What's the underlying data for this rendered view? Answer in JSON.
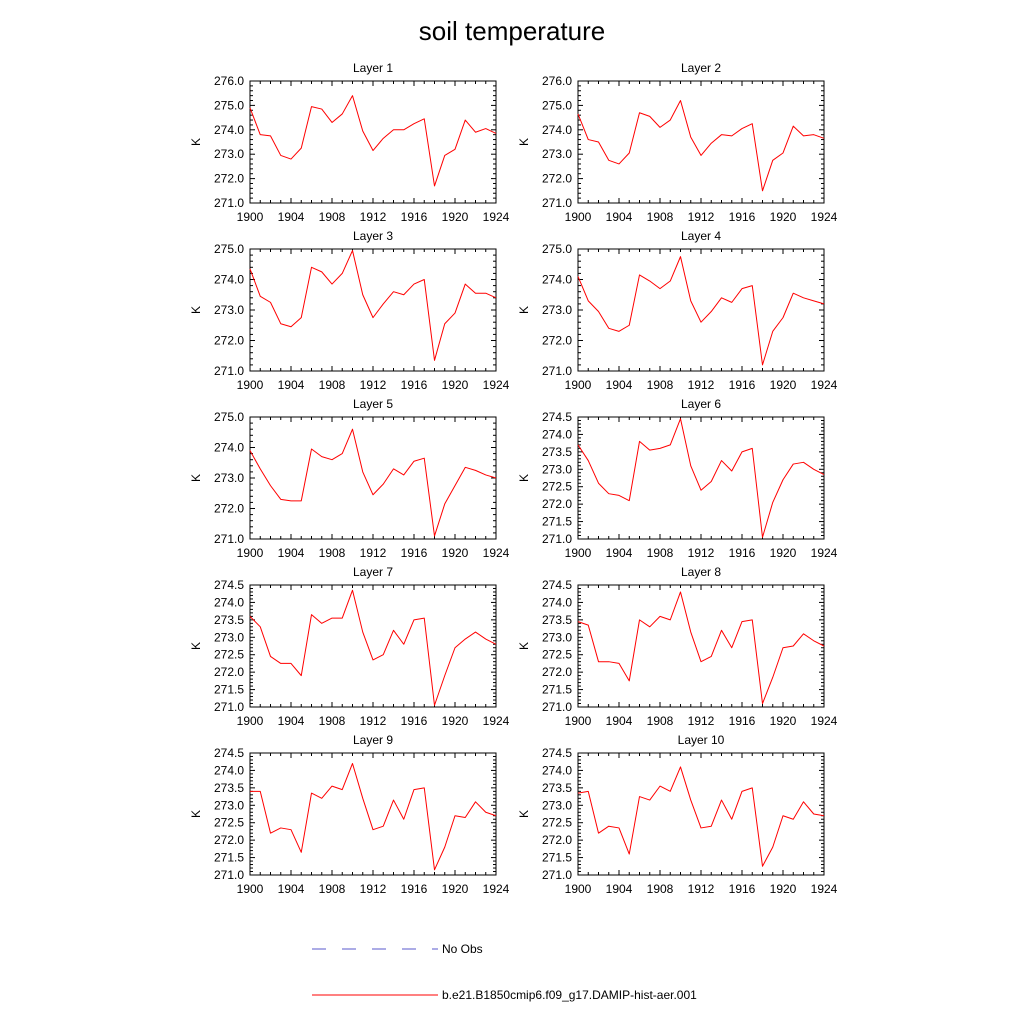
{
  "figure": {
    "title": "soil temperature",
    "legend": [
      {
        "label": "No Obs",
        "color": "#5a5acc",
        "dash": "dashed"
      },
      {
        "label": "b.e21.B1850cmip6.f09_g17.DAMIP-hist-aer.001",
        "color": "#ff0000",
        "dash": "solid"
      }
    ]
  },
  "chart_data": [
    {
      "type": "line",
      "title": "Layer 1",
      "xlabel": "",
      "ylabel": "K",
      "x": [
        1900,
        1901,
        1902,
        1903,
        1904,
        1905,
        1906,
        1907,
        1908,
        1909,
        1910,
        1911,
        1912,
        1913,
        1914,
        1915,
        1916,
        1917,
        1918,
        1919,
        1920,
        1921,
        1922,
        1923,
        1924
      ],
      "xlim": [
        1900,
        1924
      ],
      "xticks": [
        "1900",
        "1904",
        "1908",
        "1912",
        "1916",
        "1920",
        "1924"
      ],
      "ylim": [
        271.0,
        276.0
      ],
      "yticks": [
        "271.0",
        "272.0",
        "273.0",
        "274.0",
        "275.0",
        "276.0"
      ],
      "series": [
        {
          "name": "b.e21.B1850cmip6.f09_g17.DAMIP-hist-aer.001",
          "color": "#ff0000",
          "values": [
            274.9,
            273.8,
            273.75,
            272.95,
            272.8,
            273.25,
            274.95,
            274.85,
            274.3,
            274.65,
            275.4,
            273.95,
            273.15,
            273.65,
            274.0,
            274.0,
            274.25,
            274.45,
            271.7,
            272.95,
            273.2,
            274.4,
            273.9,
            274.05,
            273.85
          ]
        }
      ]
    },
    {
      "type": "line",
      "title": "Layer 2",
      "xlabel": "",
      "ylabel": "K",
      "x": [
        1900,
        1901,
        1902,
        1903,
        1904,
        1905,
        1906,
        1907,
        1908,
        1909,
        1910,
        1911,
        1912,
        1913,
        1914,
        1915,
        1916,
        1917,
        1918,
        1919,
        1920,
        1921,
        1922,
        1923,
        1924
      ],
      "xlim": [
        1900,
        1924
      ],
      "xticks": [
        "1900",
        "1904",
        "1908",
        "1912",
        "1916",
        "1920",
        "1924"
      ],
      "ylim": [
        271.0,
        276.0
      ],
      "yticks": [
        "271.0",
        "272.0",
        "273.0",
        "274.0",
        "275.0",
        "276.0"
      ],
      "series": [
        {
          "name": "b.e21.B1850cmip6.f09_g17.DAMIP-hist-aer.001",
          "color": "#ff0000",
          "values": [
            274.65,
            273.6,
            273.5,
            272.75,
            272.6,
            273.05,
            274.7,
            274.55,
            274.1,
            274.4,
            275.2,
            273.7,
            272.95,
            273.45,
            273.8,
            273.75,
            274.05,
            274.25,
            271.5,
            272.75,
            273.05,
            274.15,
            273.75,
            273.8,
            273.65
          ]
        }
      ]
    },
    {
      "type": "line",
      "title": "Layer 3",
      "xlabel": "",
      "ylabel": "K",
      "x": [
        1900,
        1901,
        1902,
        1903,
        1904,
        1905,
        1906,
        1907,
        1908,
        1909,
        1910,
        1911,
        1912,
        1913,
        1914,
        1915,
        1916,
        1917,
        1918,
        1919,
        1920,
        1921,
        1922,
        1923,
        1924
      ],
      "xlim": [
        1900,
        1924
      ],
      "xticks": [
        "1900",
        "1904",
        "1908",
        "1912",
        "1916",
        "1920",
        "1924"
      ],
      "ylim": [
        271.0,
        275.0
      ],
      "yticks": [
        "271.0",
        "272.0",
        "273.0",
        "274.0",
        "275.0"
      ],
      "series": [
        {
          "name": "b.e21.B1850cmip6.f09_g17.DAMIP-hist-aer.001",
          "color": "#ff0000",
          "values": [
            274.35,
            273.45,
            273.25,
            272.55,
            272.45,
            272.75,
            274.4,
            274.25,
            273.85,
            274.2,
            274.95,
            273.5,
            272.75,
            273.2,
            273.6,
            273.5,
            273.85,
            274.0,
            271.35,
            272.55,
            272.9,
            273.85,
            273.55,
            273.55,
            273.4
          ]
        }
      ]
    },
    {
      "type": "line",
      "title": "Layer 4",
      "xlabel": "",
      "ylabel": "K",
      "x": [
        1900,
        1901,
        1902,
        1903,
        1904,
        1905,
        1906,
        1907,
        1908,
        1909,
        1910,
        1911,
        1912,
        1913,
        1914,
        1915,
        1916,
        1917,
        1918,
        1919,
        1920,
        1921,
        1922,
        1923,
        1924
      ],
      "xlim": [
        1900,
        1924
      ],
      "xticks": [
        "1900",
        "1904",
        "1908",
        "1912",
        "1916",
        "1920",
        "1924"
      ],
      "ylim": [
        271.0,
        275.0
      ],
      "yticks": [
        "271.0",
        "272.0",
        "273.0",
        "274.0",
        "275.0"
      ],
      "series": [
        {
          "name": "b.e21.B1850cmip6.f09_g17.DAMIP-hist-aer.001",
          "color": "#ff0000",
          "values": [
            274.1,
            273.3,
            272.95,
            272.4,
            272.3,
            272.5,
            274.15,
            273.95,
            273.7,
            273.95,
            274.75,
            273.3,
            272.6,
            272.95,
            273.4,
            273.25,
            273.7,
            273.8,
            271.2,
            272.3,
            272.75,
            273.55,
            273.4,
            273.3,
            273.2
          ]
        }
      ]
    },
    {
      "type": "line",
      "title": "Layer 5",
      "xlabel": "",
      "ylabel": "K",
      "x": [
        1900,
        1901,
        1902,
        1903,
        1904,
        1905,
        1906,
        1907,
        1908,
        1909,
        1910,
        1911,
        1912,
        1913,
        1914,
        1915,
        1916,
        1917,
        1918,
        1919,
        1920,
        1921,
        1922,
        1923,
        1924
      ],
      "xlim": [
        1900,
        1924
      ],
      "xticks": [
        "1900",
        "1904",
        "1908",
        "1912",
        "1916",
        "1920",
        "1924"
      ],
      "ylim": [
        271.0,
        275.0
      ],
      "yticks": [
        "271.0",
        "272.0",
        "273.0",
        "274.0",
        "275.0"
      ],
      "series": [
        {
          "name": "b.e21.B1850cmip6.f09_g17.DAMIP-hist-aer.001",
          "color": "#ff0000",
          "values": [
            273.9,
            273.3,
            272.75,
            272.3,
            272.25,
            272.25,
            273.95,
            273.7,
            273.6,
            273.8,
            274.6,
            273.2,
            272.45,
            272.8,
            273.3,
            273.1,
            273.55,
            273.65,
            271.1,
            272.15,
            272.75,
            273.35,
            273.25,
            273.1,
            273.0
          ]
        }
      ]
    },
    {
      "type": "line",
      "title": "Layer 6",
      "xlabel": "",
      "ylabel": "K",
      "x": [
        1900,
        1901,
        1902,
        1903,
        1904,
        1905,
        1906,
        1907,
        1908,
        1909,
        1910,
        1911,
        1912,
        1913,
        1914,
        1915,
        1916,
        1917,
        1918,
        1919,
        1920,
        1921,
        1922,
        1923,
        1924
      ],
      "xlim": [
        1900,
        1924
      ],
      "xticks": [
        "1900",
        "1904",
        "1908",
        "1912",
        "1916",
        "1920",
        "1924"
      ],
      "ylim": [
        271.0,
        274.5
      ],
      "yticks": [
        "271.0",
        "271.5",
        "272.0",
        "272.5",
        "273.0",
        "273.5",
        "274.0",
        "274.5"
      ],
      "series": [
        {
          "name": "b.e21.B1850cmip6.f09_g17.DAMIP-hist-aer.001",
          "color": "#ff0000",
          "values": [
            273.7,
            273.25,
            272.6,
            272.3,
            272.25,
            272.1,
            273.8,
            273.55,
            273.6,
            273.7,
            274.45,
            273.1,
            272.4,
            272.65,
            273.25,
            272.95,
            273.5,
            273.6,
            271.05,
            272.05,
            272.7,
            273.15,
            273.2,
            273.0,
            272.85
          ]
        }
      ]
    },
    {
      "type": "line",
      "title": "Layer 7",
      "xlabel": "",
      "ylabel": "K",
      "x": [
        1900,
        1901,
        1902,
        1903,
        1904,
        1905,
        1906,
        1907,
        1908,
        1909,
        1910,
        1911,
        1912,
        1913,
        1914,
        1915,
        1916,
        1917,
        1918,
        1919,
        1920,
        1921,
        1922,
        1923,
        1924
      ],
      "xlim": [
        1900,
        1924
      ],
      "xticks": [
        "1900",
        "1904",
        "1908",
        "1912",
        "1916",
        "1920",
        "1924"
      ],
      "ylim": [
        271.0,
        274.5
      ],
      "yticks": [
        "271.0",
        "271.5",
        "272.0",
        "272.5",
        "273.0",
        "273.5",
        "274.0",
        "274.5"
      ],
      "series": [
        {
          "name": "b.e21.B1850cmip6.f09_g17.DAMIP-hist-aer.001",
          "color": "#ff0000",
          "values": [
            273.6,
            273.3,
            272.45,
            272.25,
            272.25,
            271.9,
            273.65,
            273.4,
            273.55,
            273.55,
            274.35,
            273.15,
            272.35,
            272.5,
            273.2,
            272.8,
            273.5,
            273.55,
            271.05,
            271.9,
            272.7,
            272.95,
            273.15,
            272.95,
            272.8
          ]
        }
      ]
    },
    {
      "type": "line",
      "title": "Layer 8",
      "xlabel": "",
      "ylabel": "K",
      "x": [
        1900,
        1901,
        1902,
        1903,
        1904,
        1905,
        1906,
        1907,
        1908,
        1909,
        1910,
        1911,
        1912,
        1913,
        1914,
        1915,
        1916,
        1917,
        1918,
        1919,
        1920,
        1921,
        1922,
        1923,
        1924
      ],
      "xlim": [
        1900,
        1924
      ],
      "xticks": [
        "1900",
        "1904",
        "1908",
        "1912",
        "1916",
        "1920",
        "1924"
      ],
      "ylim": [
        271.0,
        274.5
      ],
      "yticks": [
        "271.0",
        "271.5",
        "272.0",
        "272.5",
        "273.0",
        "273.5",
        "274.0",
        "274.5"
      ],
      "series": [
        {
          "name": "b.e21.B1850cmip6.f09_g17.DAMIP-hist-aer.001",
          "color": "#ff0000",
          "values": [
            273.45,
            273.35,
            272.3,
            272.3,
            272.25,
            271.75,
            273.5,
            273.3,
            273.6,
            273.5,
            274.3,
            273.15,
            272.3,
            272.45,
            273.2,
            272.7,
            273.45,
            273.5,
            271.1,
            271.85,
            272.7,
            272.75,
            273.1,
            272.9,
            272.75
          ]
        }
      ]
    },
    {
      "type": "line",
      "title": "Layer 9",
      "xlabel": "",
      "ylabel": "K",
      "x": [
        1900,
        1901,
        1902,
        1903,
        1904,
        1905,
        1906,
        1907,
        1908,
        1909,
        1910,
        1911,
        1912,
        1913,
        1914,
        1915,
        1916,
        1917,
        1918,
        1919,
        1920,
        1921,
        1922,
        1923,
        1924
      ],
      "xlim": [
        1900,
        1924
      ],
      "xticks": [
        "1900",
        "1904",
        "1908",
        "1912",
        "1916",
        "1920",
        "1924"
      ],
      "ylim": [
        271.0,
        274.5
      ],
      "yticks": [
        "271.0",
        "271.5",
        "272.0",
        "272.5",
        "273.0",
        "273.5",
        "274.0",
        "274.5"
      ],
      "series": [
        {
          "name": "b.e21.B1850cmip6.f09_g17.DAMIP-hist-aer.001",
          "color": "#ff0000",
          "values": [
            273.4,
            273.4,
            272.2,
            272.35,
            272.3,
            271.65,
            273.35,
            273.2,
            273.55,
            273.45,
            274.2,
            273.2,
            272.3,
            272.4,
            273.15,
            272.6,
            273.45,
            273.5,
            271.15,
            271.8,
            272.7,
            272.65,
            273.1,
            272.8,
            272.7
          ]
        }
      ]
    },
    {
      "type": "line",
      "title": "Layer 10",
      "xlabel": "",
      "ylabel": "K",
      "x": [
        1900,
        1901,
        1902,
        1903,
        1904,
        1905,
        1906,
        1907,
        1908,
        1909,
        1910,
        1911,
        1912,
        1913,
        1914,
        1915,
        1916,
        1917,
        1918,
        1919,
        1920,
        1921,
        1922,
        1923,
        1924
      ],
      "xlim": [
        1900,
        1924
      ],
      "xticks": [
        "1900",
        "1904",
        "1908",
        "1912",
        "1916",
        "1920",
        "1924"
      ],
      "ylim": [
        271.0,
        274.5
      ],
      "yticks": [
        "271.0",
        "271.5",
        "272.0",
        "272.5",
        "273.0",
        "273.5",
        "274.0",
        "274.5"
      ],
      "series": [
        {
          "name": "b.e21.B1850cmip6.f09_g17.DAMIP-hist-aer.001",
          "color": "#ff0000",
          "values": [
            273.35,
            273.4,
            272.2,
            272.4,
            272.35,
            271.6,
            273.25,
            273.15,
            273.55,
            273.4,
            274.1,
            273.15,
            272.35,
            272.4,
            273.15,
            272.6,
            273.4,
            273.5,
            271.25,
            271.8,
            272.7,
            272.6,
            273.1,
            272.75,
            272.7
          ]
        }
      ]
    }
  ]
}
